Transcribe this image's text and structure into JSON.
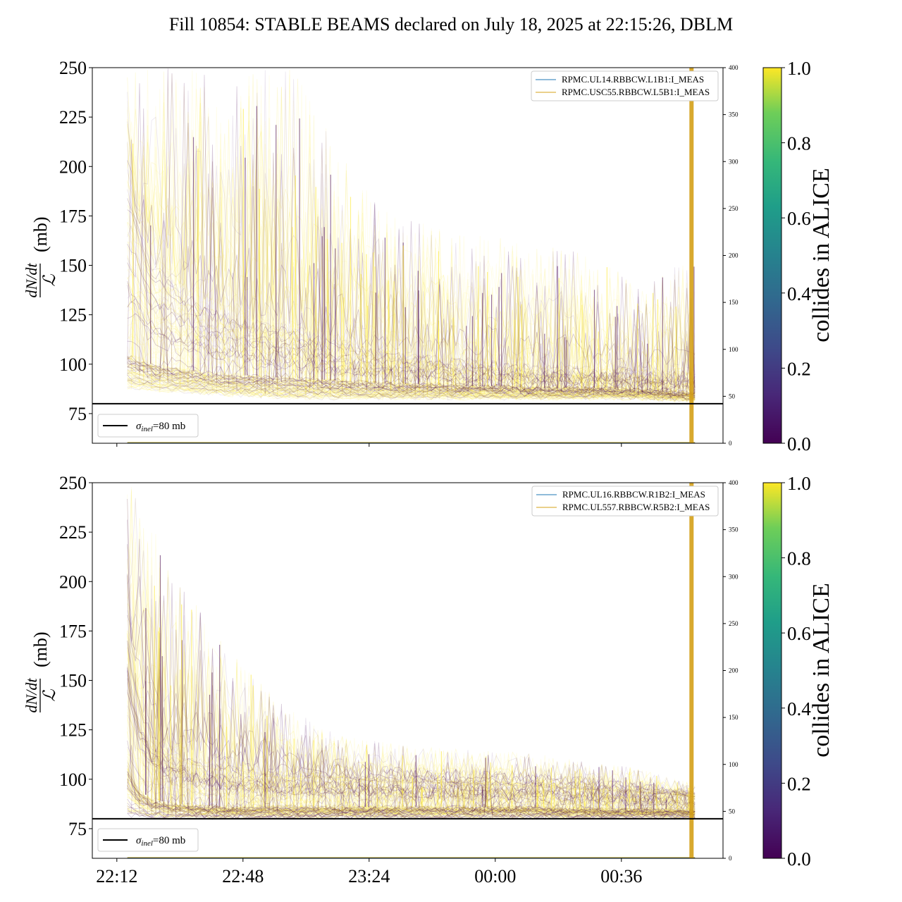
{
  "title": "Fill 10854: STABLE BEAMS declared on July 18, 2025 at 22:15:26, DBLM",
  "colors": {
    "viridis_low": "#440154",
    "viridis_mid": "#21918c",
    "viridis_high": "#fde725",
    "blue_series": "#1f77b4",
    "orange_series": "#d4a017",
    "reference_line": "#000000"
  },
  "chart_data": [
    {
      "type": "line",
      "panel": "top",
      "ylabel_num": "dN/dt",
      "ylabel_den": "ℒ",
      "ylabel_unit": "(mb)",
      "ylim": [
        60,
        250
      ],
      "yticks": [
        75,
        100,
        125,
        150,
        175,
        200,
        225,
        250
      ],
      "xlim_minutes": [
        -7,
        173
      ],
      "xtick_minutes": [
        0,
        72,
        144
      ],
      "secondary_ylim": [
        0,
        400
      ],
      "secondary_yticks": [
        0,
        50,
        100,
        150,
        200,
        250,
        300,
        350,
        400
      ],
      "reference_line": {
        "y": 80,
        "label_sym": "σ",
        "label_sub": "inel",
        "label_val": "=80 mb"
      },
      "legend": [
        "RPMC.UL14.RBBCW.L1B1:I_MEAS",
        "RPMC.USC55.RBBCW.L5B1:I_MEAS"
      ],
      "colorbar": {
        "label": "collides in ALICE",
        "ticks": [
          "0.0",
          "0.2",
          "0.4",
          "0.6",
          "0.8",
          "1.0"
        ]
      },
      "vertical_band_minute": 164,
      "envelope": {
        "x_minutes": [
          3,
          10,
          20,
          30,
          40,
          50,
          60,
          70,
          80,
          90,
          100,
          110,
          120,
          130,
          140,
          150,
          160,
          165
        ],
        "y_high": [
          250,
          250,
          250,
          250,
          250,
          250,
          220,
          190,
          175,
          170,
          165,
          165,
          160,
          158,
          150,
          140,
          150,
          150
        ],
        "y_upper": [
          190,
          150,
          135,
          125,
          120,
          118,
          110,
          108,
          104,
          102,
          100,
          98,
          97,
          96,
          96,
          95,
          94,
          93
        ],
        "y_core": [
          105,
          100,
          97,
          95,
          94,
          93,
          92,
          91,
          90,
          90,
          89,
          89,
          88,
          88,
          88,
          87,
          86,
          85
        ],
        "y_low": [
          88,
          87,
          86,
          85,
          84,
          83,
          83,
          83,
          83,
          83,
          83,
          83,
          83,
          83,
          83,
          83,
          82,
          82
        ]
      }
    },
    {
      "type": "line",
      "panel": "bottom",
      "ylabel_num": "dN/dt",
      "ylabel_den": "ℒ",
      "ylabel_unit": "(mb)",
      "ylim": [
        60,
        250
      ],
      "yticks": [
        75,
        100,
        125,
        150,
        175,
        200,
        225,
        250
      ],
      "xlim_minutes": [
        -7,
        173
      ],
      "xticks": [
        "22:12",
        "22:48",
        "23:24",
        "00:00",
        "00:36"
      ],
      "xtick_minutes": [
        0,
        36,
        72,
        108,
        144
      ],
      "secondary_ylim": [
        0,
        400
      ],
      "secondary_yticks": [
        0,
        50,
        100,
        150,
        200,
        250,
        300,
        350,
        400
      ],
      "reference_line": {
        "y": 80,
        "label_sym": "σ",
        "label_sub": "inel",
        "label_val": "=80 mb"
      },
      "legend": [
        "RPMC.UL16.RBBCW.R1B2:I_MEAS",
        "RPMC.UL557.RBBCW.R5B2:I_MEAS"
      ],
      "colorbar": {
        "label": "collides in ALICE",
        "ticks": [
          "0.0",
          "0.2",
          "0.4",
          "0.6",
          "0.8",
          "1.0"
        ]
      },
      "vertical_band_minute": 164,
      "envelope": {
        "x_minutes": [
          3,
          6,
          10,
          15,
          20,
          30,
          40,
          50,
          60,
          70,
          80,
          90,
          100,
          110,
          120,
          130,
          140,
          150,
          160,
          165
        ],
        "y_high": [
          250,
          250,
          230,
          210,
          195,
          170,
          150,
          135,
          125,
          120,
          118,
          116,
          115,
          114,
          113,
          110,
          108,
          105,
          100,
          98
        ],
        "y_upper": [
          170,
          140,
          120,
          112,
          108,
          104,
          102,
          100,
          100,
          99,
          98,
          98,
          97,
          97,
          96,
          95,
          94,
          93,
          92,
          91
        ],
        "y_core": [
          110,
          95,
          90,
          88,
          87,
          86,
          86,
          86,
          86,
          86,
          86,
          86,
          86,
          86,
          86,
          85,
          85,
          85,
          85,
          84
        ],
        "y_low": [
          82,
          82,
          81,
          81,
          81,
          81,
          81,
          81,
          81,
          81,
          81,
          81,
          81,
          81,
          81,
          81,
          81,
          81,
          81,
          81
        ]
      }
    }
  ]
}
